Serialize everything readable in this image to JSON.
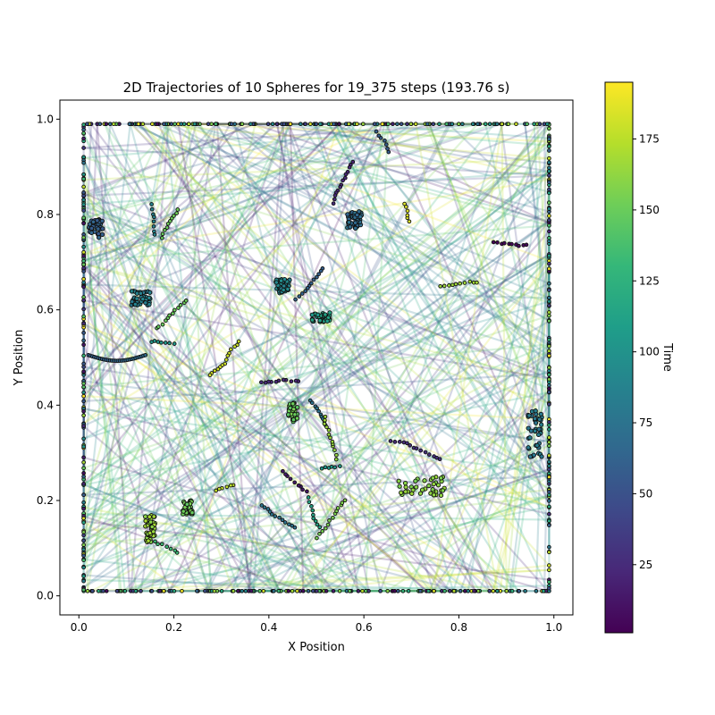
{
  "chart_data": {
    "type": "scatter",
    "title": "2D Trajectories of 10 Spheres for 19_375 steps (193.76 s)",
    "xlabel": "X Position",
    "ylabel": "Y Position",
    "xlim": [
      -0.04,
      1.04
    ],
    "ylim": [
      -0.04,
      1.04
    ],
    "xticks": [
      "0.0",
      "0.2",
      "0.4",
      "0.6",
      "0.8",
      "1.0"
    ],
    "xtick_values": [
      0.0,
      0.2,
      0.4,
      0.6,
      0.8,
      1.0
    ],
    "yticks": [
      "0.0",
      "0.2",
      "0.4",
      "0.6",
      "0.8",
      "1.0"
    ],
    "ytick_values": [
      0.0,
      0.2,
      0.4,
      0.6,
      0.8,
      1.0
    ],
    "grid": false,
    "colorbar": {
      "label": "Time",
      "colormap": "viridis",
      "range": [
        1,
        195
      ],
      "ticks": [
        "25",
        "50",
        "75",
        "100",
        "125",
        "150",
        "175"
      ],
      "tick_values": [
        25,
        50,
        75,
        100,
        125,
        150,
        175
      ]
    },
    "colors": {
      "viridis": [
        "#440154",
        "#482878",
        "#3e4989",
        "#31688e",
        "#26828e",
        "#1f9e89",
        "#35b779",
        "#6ece58",
        "#b5de2b",
        "#fde725"
      ],
      "marker_edge": "#111111"
    },
    "box": [
      0.01,
      0.99
    ],
    "spheres": 10,
    "clusters": [
      {
        "x": 0.15,
        "y": 0.14,
        "w": 0.02,
        "h": 0.06,
        "t": 165
      },
      {
        "x": 0.229,
        "y": 0.185,
        "w": 0.02,
        "h": 0.03,
        "t": 150
      },
      {
        "x": 0.72,
        "y": 0.23,
        "w": 0.1,
        "h": 0.04,
        "t": 160
      },
      {
        "x": 0.96,
        "y": 0.34,
        "w": 0.03,
        "h": 0.1,
        "t": 80
      },
      {
        "x": 0.43,
        "y": 0.65,
        "w": 0.03,
        "h": 0.03,
        "t": 90
      },
      {
        "x": 0.51,
        "y": 0.585,
        "w": 0.04,
        "h": 0.02,
        "t": 110
      },
      {
        "x": 0.58,
        "y": 0.79,
        "w": 0.03,
        "h": 0.04,
        "t": 70
      },
      {
        "x": 0.13,
        "y": 0.625,
        "w": 0.04,
        "h": 0.03,
        "t": 85
      },
      {
        "x": 0.45,
        "y": 0.385,
        "w": 0.02,
        "h": 0.04,
        "t": 150
      },
      {
        "x": 0.035,
        "y": 0.77,
        "w": 0.03,
        "h": 0.04,
        "t": 60
      }
    ]
  }
}
